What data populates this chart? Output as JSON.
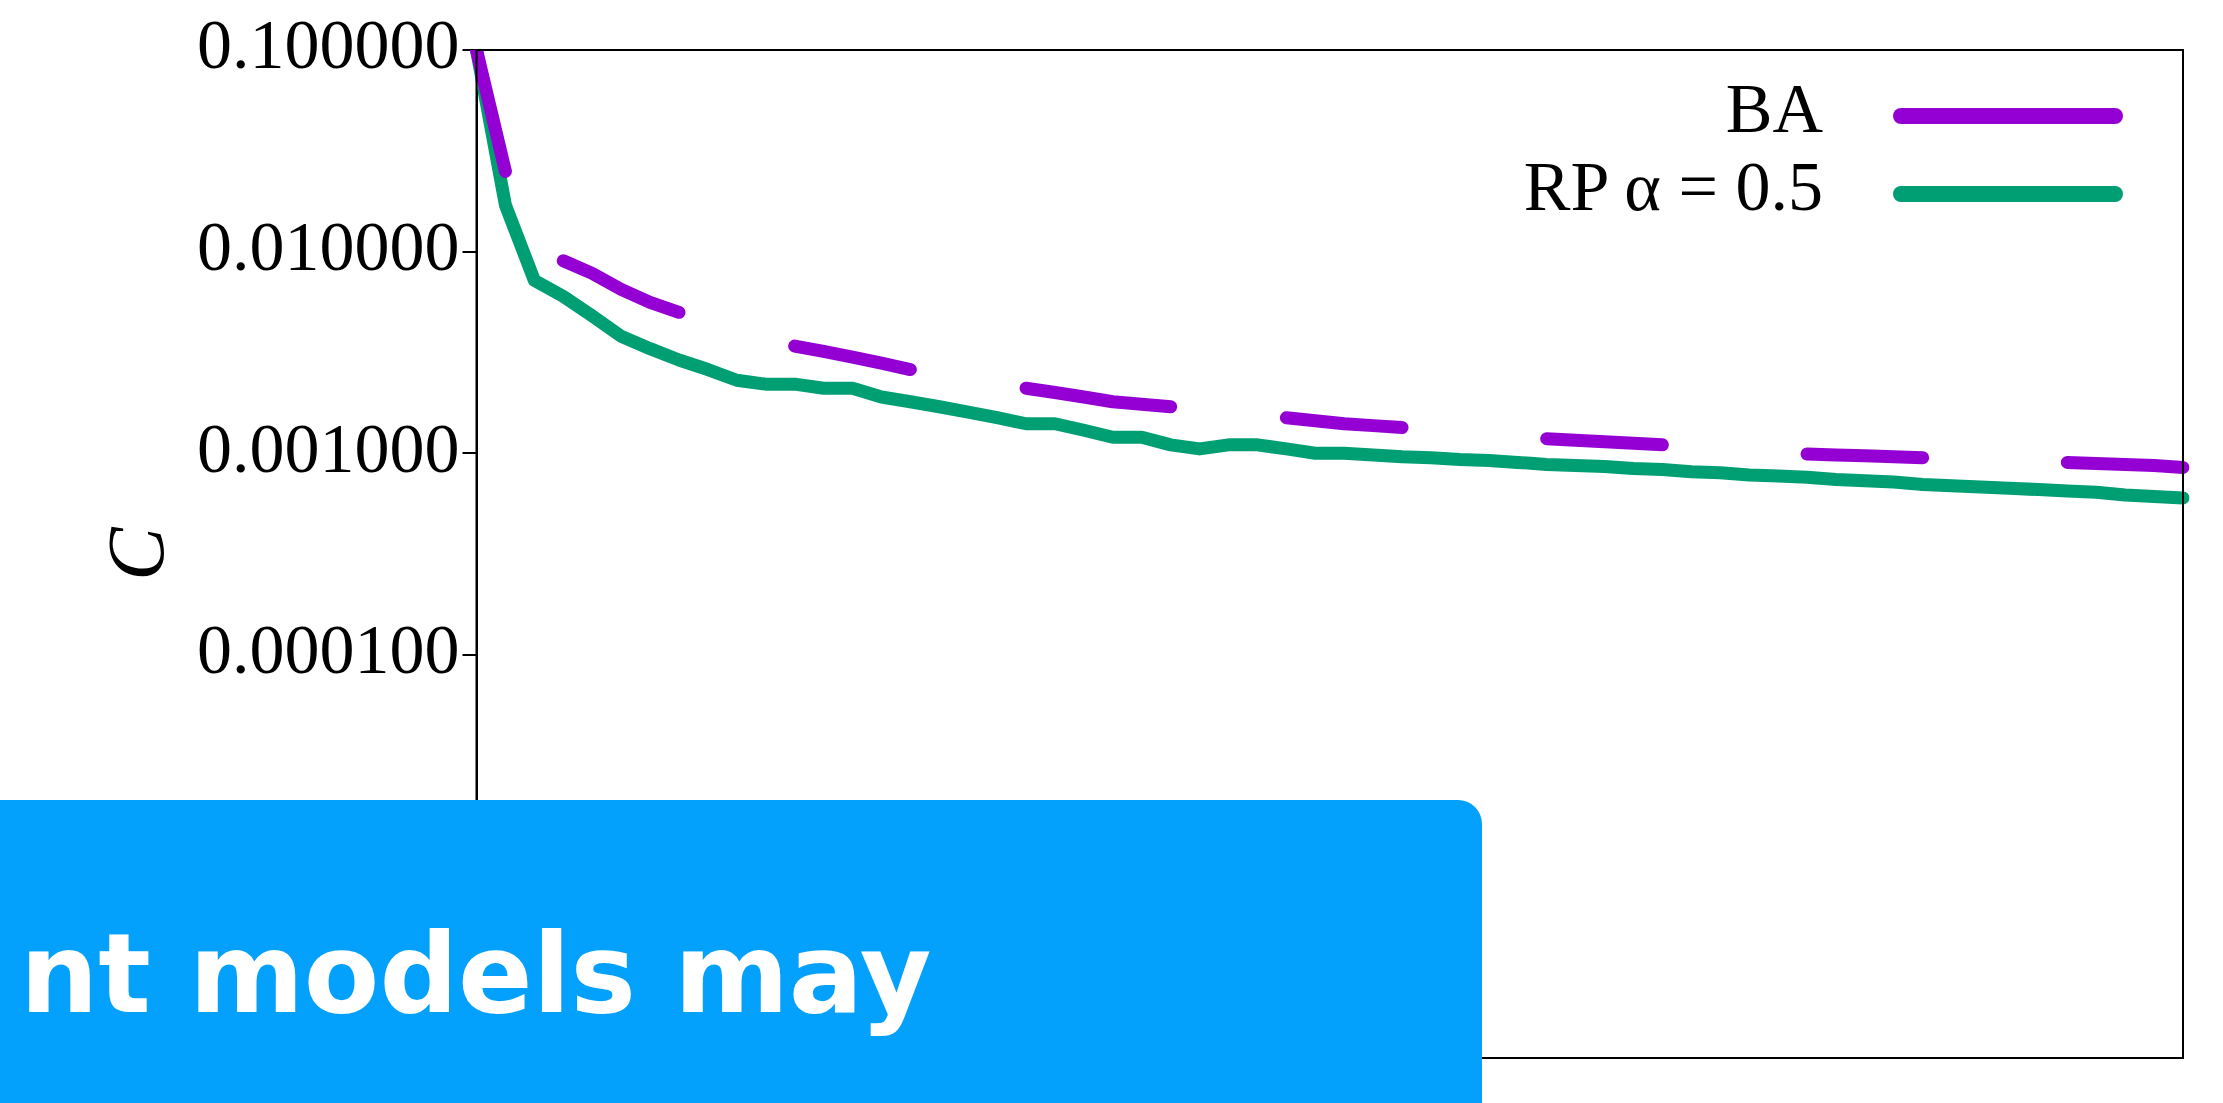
{
  "chart_data": {
    "type": "line",
    "ylabel": "C",
    "log": "y",
    "legend": "top right",
    "tick_labels": "y",
    "marker": "none",
    "categories": [
      null,
      null,
      null,
      null,
      null,
      null,
      null,
      null,
      null,
      null,
      null,
      null,
      null,
      null,
      null,
      null,
      null,
      null,
      null,
      null,
      null,
      null,
      null,
      null,
      null,
      null,
      null,
      null,
      null,
      null,
      null,
      null,
      null,
      null,
      null,
      null,
      null,
      null,
      null,
      null,
      null,
      null,
      null,
      null,
      null,
      null,
      null,
      null,
      null,
      null,
      null,
      null,
      null,
      null,
      null,
      null,
      null,
      null,
      null,
      null
    ],
    "ylim": [
      1e-06,
      0.1
    ],
    "yticks": [
      {
        "value": 0.1,
        "label": "0.100000"
      },
      {
        "value": 0.01,
        "label": "0.010000"
      },
      {
        "value": 0.001,
        "label": "0.001000"
      },
      {
        "value": 0.0001,
        "label": "0.000100"
      },
      {
        "value": 1e-05,
        "label": null
      }
    ],
    "series": [
      {
        "name": "BA",
        "color": "#9400d3",
        "values": [
          0.1,
          0.025,
          null,
          0.009,
          0.0078,
          0.0065,
          0.0056,
          0.005,
          null,
          null,
          null,
          0.0034,
          0.0032,
          0.003,
          0.0028,
          0.0026,
          null,
          null,
          null,
          0.0021,
          0.002,
          0.0019,
          0.0018,
          0.00175,
          0.0017,
          null,
          null,
          null,
          0.0015,
          0.00145,
          0.0014,
          0.00137,
          0.00134,
          null,
          null,
          null,
          null,
          0.00118,
          0.00116,
          0.00114,
          0.00112,
          0.0011,
          null,
          null,
          null,
          null,
          0.00099,
          0.00098,
          0.00097,
          0.00096,
          0.00095,
          null,
          null,
          null,
          null,
          0.0009,
          0.00089,
          0.00088,
          0.00087,
          0.00085
        ]
      },
      {
        "name": "RP α = 0.5",
        "color": "#009e73",
        "values": [
          0.1,
          0.017,
          0.0072,
          0.006,
          0.0048,
          0.0038,
          0.0033,
          0.0029,
          0.0026,
          0.0023,
          0.0022,
          0.0022,
          0.0021,
          0.0021,
          0.0019,
          0.0018,
          0.0017,
          0.0016,
          0.0015,
          0.0014,
          0.0014,
          0.0013,
          0.0012,
          0.0012,
          0.0011,
          0.00105,
          0.0011,
          0.0011,
          0.00105,
          0.001,
          0.001,
          0.00098,
          0.00096,
          0.00095,
          0.00093,
          0.00092,
          0.0009,
          0.00088,
          0.00087,
          0.00086,
          0.00084,
          0.00083,
          0.00081,
          0.0008,
          0.00078,
          0.00077,
          0.00076,
          0.00074,
          0.00073,
          0.00072,
          0.0007,
          0.00069,
          0.00068,
          0.00067,
          0.00066,
          0.00065,
          0.00064,
          0.00062,
          0.00061,
          0.0006
        ]
      }
    ],
    "annotations": [
      "nt models may"
    ]
  }
}
